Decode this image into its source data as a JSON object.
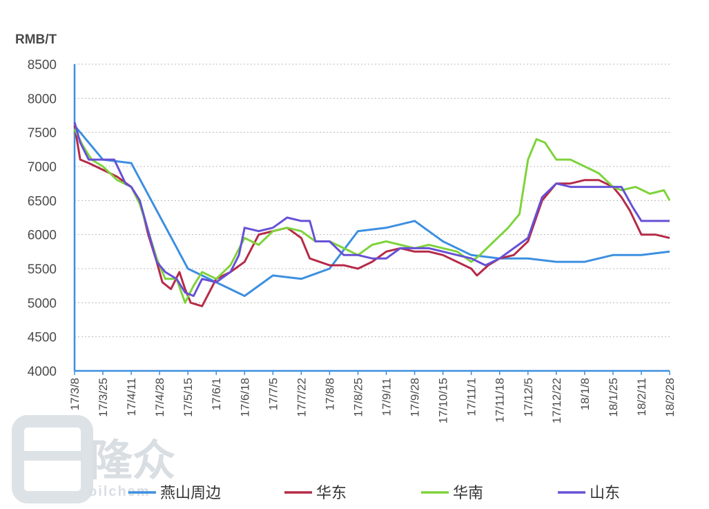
{
  "chart_data": {
    "type": "line",
    "ylabel": "RMB/T",
    "ylim": [
      4000,
      8500
    ],
    "y_ticks": [
      "8500",
      "8000",
      "7500",
      "7000",
      "6500",
      "6000",
      "5500",
      "5000",
      "4500",
      "4000"
    ],
    "x_ticks": [
      "17/3/8",
      "17/3/25",
      "17/4/11",
      "17/4/28",
      "17/5/15",
      "17/6/1",
      "17/6/18",
      "17/7/5",
      "17/7/22",
      "17/8/8",
      "17/8/25",
      "17/9/11",
      "17/9/28",
      "17/10/15",
      "17/11/1",
      "17/11/18",
      "17/12/5",
      "17/12/22",
      "18/1/8",
      "18/1/25",
      "18/2/11",
      "18/2/28"
    ],
    "grid": "horizontal dotted",
    "legend_position": "bottom",
    "series": [
      {
        "name": "燕山周边",
        "color": "#3c8fe0",
        "x": [
          0,
          1,
          2,
          4,
          6,
          7,
          8,
          9,
          10,
          11,
          12,
          13,
          14,
          15,
          16,
          17,
          18,
          19,
          20,
          21
        ],
        "values": [
          7600,
          7100,
          7050,
          5500,
          5100,
          5400,
          5350,
          5500,
          6050,
          6100,
          6200,
          5900,
          5700,
          5650,
          5650,
          5600,
          5600,
          5700,
          5700,
          5750
        ]
      },
      {
        "name": "华东",
        "color": "#b52a47",
        "x": [
          0,
          0.2,
          0.5,
          1,
          1.5,
          2,
          2.3,
          2.6,
          2.9,
          3.1,
          3.4,
          3.7,
          3.9,
          4.1,
          4.5,
          5,
          5.5,
          6,
          6.5,
          7,
          7.5,
          8,
          8.3,
          9,
          9.5,
          10,
          10.5,
          11,
          11.5,
          12,
          12.5,
          13,
          13.5,
          14,
          14.2,
          14.6,
          15,
          15.5,
          16,
          16.5,
          17,
          17.5,
          18,
          18.5,
          19,
          19.3,
          19.6,
          20,
          20.5,
          21
        ],
        "values": [
          7600,
          7100,
          7050,
          6950,
          6850,
          6700,
          6500,
          6000,
          5600,
          5300,
          5200,
          5450,
          5200,
          5000,
          4950,
          5350,
          5450,
          5600,
          6000,
          6050,
          6100,
          5950,
          5650,
          5550,
          5550,
          5500,
          5600,
          5750,
          5800,
          5750,
          5750,
          5700,
          5600,
          5500,
          5400,
          5550,
          5650,
          5700,
          5900,
          6500,
          6750,
          6750,
          6800,
          6800,
          6700,
          6550,
          6350,
          6000,
          6000,
          5950
        ]
      },
      {
        "name": "华南",
        "color": "#7ed33b",
        "x": [
          0,
          0.3,
          0.6,
          1,
          1.5,
          2,
          2.3,
          2.6,
          2.9,
          3.2,
          3.6,
          3.9,
          4.2,
          4.5,
          5,
          5.5,
          6,
          6.5,
          7,
          7.5,
          8,
          8.5,
          9,
          9.5,
          10,
          10.5,
          11,
          11.5,
          12,
          12.5,
          13,
          13.5,
          14,
          14.3,
          14.8,
          15.3,
          15.7,
          16,
          16.3,
          16.6,
          17,
          17.5,
          18,
          18.5,
          19,
          19.3,
          19.8,
          20.3,
          20.8,
          21
        ],
        "values": [
          7550,
          7300,
          7100,
          7000,
          6800,
          6700,
          6450,
          6050,
          5650,
          5350,
          5350,
          5000,
          5250,
          5450,
          5350,
          5550,
          5950,
          5850,
          6050,
          6100,
          6050,
          5900,
          5900,
          5800,
          5700,
          5850,
          5900,
          5850,
          5800,
          5850,
          5800,
          5750,
          5600,
          5700,
          5900,
          6100,
          6300,
          7100,
          7400,
          7350,
          7100,
          7100,
          7000,
          6900,
          6700,
          6650,
          6700,
          6600,
          6650,
          6500
        ]
      },
      {
        "name": "山东",
        "color": "#6650d6",
        "x": [
          0,
          0.2,
          0.5,
          1,
          1.4,
          1.8,
          2,
          2.3,
          2.6,
          2.9,
          3.2,
          3.6,
          3.9,
          4.2,
          4.5,
          5,
          5.5,
          5.8,
          6,
          6.5,
          7,
          7.5,
          8,
          8.3,
          8.5,
          9,
          9.5,
          10,
          10.5,
          11,
          11.5,
          12,
          12.5,
          13,
          13.5,
          14,
          14.5,
          15,
          15.5,
          16,
          16.5,
          17,
          17.5,
          18,
          18.5,
          19,
          19.3,
          19.7,
          20,
          20.5,
          21
        ],
        "values": [
          7650,
          7350,
          7100,
          7100,
          7100,
          6750,
          6700,
          6500,
          6050,
          5600,
          5450,
          5350,
          5150,
          5100,
          5350,
          5300,
          5450,
          5700,
          6100,
          6050,
          6100,
          6250,
          6200,
          6200,
          5900,
          5900,
          5700,
          5700,
          5650,
          5650,
          5800,
          5800,
          5800,
          5750,
          5700,
          5650,
          5550,
          5650,
          5800,
          5950,
          6550,
          6750,
          6700,
          6700,
          6700,
          6700,
          6700,
          6400,
          6200,
          6200,
          6200
        ]
      }
    ]
  },
  "watermark": {
    "title": "隆众",
    "subtitle": "oilchem"
  }
}
